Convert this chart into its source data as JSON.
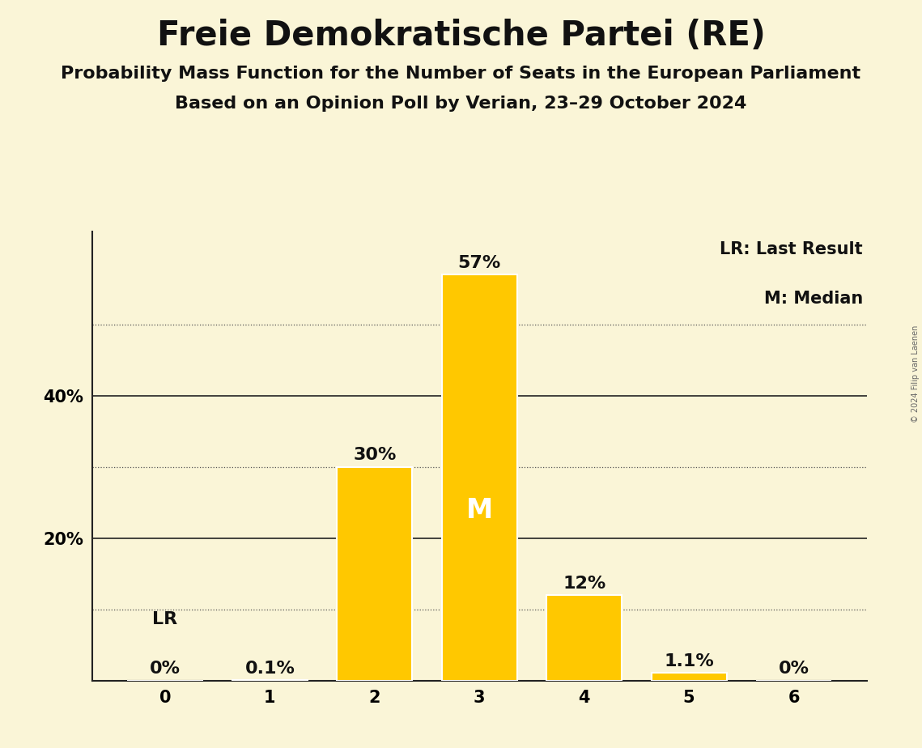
{
  "title": "Freie Demokratische Partei (RE)",
  "subtitle1": "Probability Mass Function for the Number of Seats in the European Parliament",
  "subtitle2": "Based on an Opinion Poll by Verian, 23–29 October 2024",
  "copyright_text": "© 2024 Filip van Laenen",
  "categories": [
    0,
    1,
    2,
    3,
    4,
    5,
    6
  ],
  "values": [
    0.0,
    0.1,
    30.0,
    57.0,
    12.0,
    1.1,
    0.0
  ],
  "bar_color": "#FFC800",
  "bar_edge_color": "#FFFFFF",
  "background_color": "#FAF5D7",
  "title_fontsize": 30,
  "subtitle_fontsize": 16,
  "label_fontsize": 16,
  "tick_fontsize": 15,
  "dotted_lines": [
    10,
    30,
    50
  ],
  "solid_lines": [
    20,
    40
  ],
  "ylim": [
    0,
    63
  ],
  "legend_text1": "LR: Last Result",
  "legend_text2": "M: Median",
  "median_bar": 3,
  "lr_bar": 0,
  "bar_width": 0.72
}
